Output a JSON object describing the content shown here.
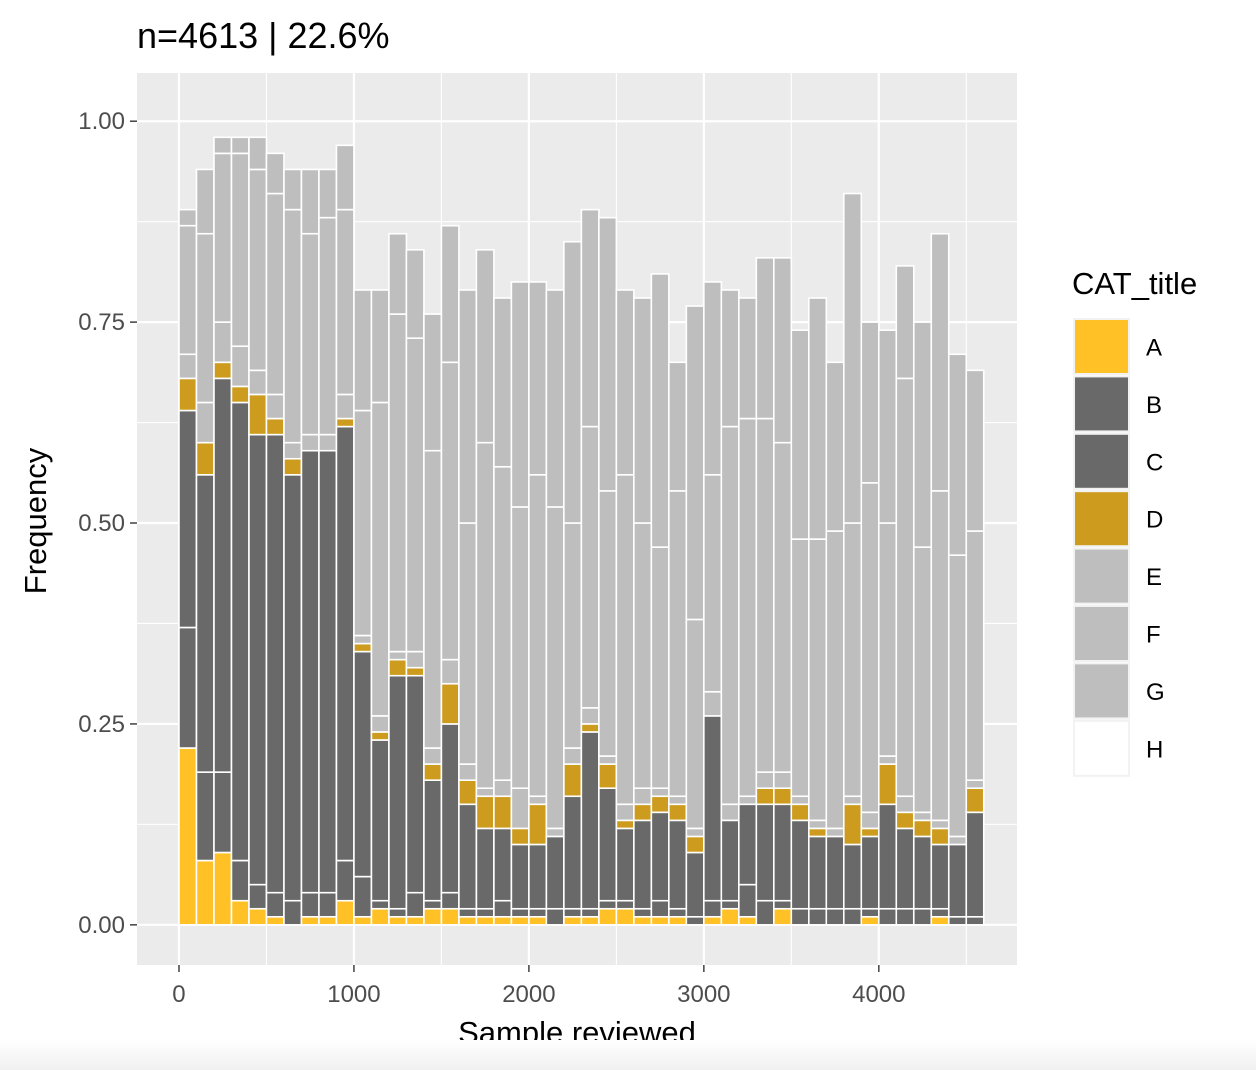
{
  "chart_data": {
    "type": "bar",
    "stacked": true,
    "title": "n=4613 | 22.6%",
    "xlabel": "Sample reviewed",
    "ylabel": "Frequency",
    "xlim": [
      -240,
      4790
    ],
    "ylim": [
      -0.05,
      1.06
    ],
    "xticks": [
      0,
      1000,
      2000,
      3000,
      4000
    ],
    "xtick_labels": [
      "0",
      "1000",
      "2000",
      "3000",
      "4000"
    ],
    "yticks": [
      0,
      0.25,
      0.5,
      0.75,
      1.0
    ],
    "ytick_labels": [
      "0.00",
      "0.25",
      "0.50",
      "0.75",
      "1.00"
    ],
    "bin_width": 100,
    "x": [
      50,
      150,
      250,
      350,
      450,
      550,
      650,
      750,
      850,
      950,
      1050,
      1150,
      1250,
      1350,
      1450,
      1550,
      1650,
      1750,
      1850,
      1950,
      2050,
      2150,
      2250,
      2350,
      2450,
      2550,
      2650,
      2750,
      2850,
      2950,
      3050,
      3150,
      3250,
      3350,
      3450,
      3550,
      3650,
      3750,
      3850,
      3950,
      4050,
      4150,
      4250,
      4350,
      4450,
      4550
    ],
    "legend_title": "CAT_title",
    "legend_position": "right",
    "series": [
      {
        "name": "A",
        "color": "#FFC125",
        "values": [
          0.22,
          0.08,
          0.09,
          0.03,
          0.02,
          0.01,
          0,
          0.01,
          0.01,
          0.03,
          0.01,
          0.02,
          0.01,
          0.01,
          0.02,
          0.02,
          0.01,
          0.01,
          0.01,
          0.01,
          0.01,
          0,
          0.01,
          0.01,
          0.02,
          0.02,
          0.01,
          0.01,
          0.01,
          0,
          0.01,
          0.02,
          0.01,
          0,
          0.02,
          0,
          0,
          0,
          0,
          0.01,
          0,
          0,
          0,
          0.01,
          0,
          0
        ]
      },
      {
        "name": "B",
        "color": "#696969",
        "values": [
          0.15,
          0.11,
          0.1,
          0.05,
          0.03,
          0.03,
          0.03,
          0.03,
          0.03,
          0.05,
          0.05,
          0.01,
          0.01,
          0.03,
          0.01,
          0.02,
          0.01,
          0.01,
          0.02,
          0.01,
          0.01,
          0.02,
          0.01,
          0.01,
          0.01,
          0.01,
          0.01,
          0.02,
          0.01,
          0.01,
          0.02,
          0.01,
          0.04,
          0.03,
          0.01,
          0.02,
          0.02,
          0.02,
          0.02,
          0.01,
          0.02,
          0.02,
          0.02,
          0.01,
          0.01,
          0.01
        ]
      },
      {
        "name": "C",
        "color": "#696969",
        "values": [
          0.27,
          0.37,
          0.49,
          0.57,
          0.56,
          0.57,
          0.53,
          0.55,
          0.55,
          0.54,
          0.28,
          0.2,
          0.29,
          0.27,
          0.15,
          0.21,
          0.13,
          0.1,
          0.09,
          0.08,
          0.08,
          0.09,
          0.14,
          0.22,
          0.14,
          0.09,
          0.11,
          0.11,
          0.11,
          0.08,
          0.23,
          0.1,
          0.1,
          0.12,
          0.12,
          0.11,
          0.09,
          0.09,
          0.08,
          0.09,
          0.13,
          0.1,
          0.09,
          0.08,
          0.09,
          0.13
        ]
      },
      {
        "name": "D",
        "color": "#CD9B1D",
        "values": [
          0.04,
          0.04,
          0.02,
          0.02,
          0.05,
          0.02,
          0.02,
          0,
          0,
          0.01,
          0.01,
          0.01,
          0.02,
          0.01,
          0.02,
          0.05,
          0.03,
          0.04,
          0.04,
          0.02,
          0.05,
          0,
          0.04,
          0.01,
          0.03,
          0.01,
          0.02,
          0.02,
          0.02,
          0.02,
          0,
          0,
          0,
          0.02,
          0.02,
          0.02,
          0.01,
          0,
          0.05,
          0.01,
          0.05,
          0.02,
          0.02,
          0.02,
          0,
          0.03
        ]
      },
      {
        "name": "E",
        "color": "#BEBEBE",
        "values": [
          0.03,
          0.05,
          0.05,
          0.05,
          0.03,
          0.03,
          0.02,
          0.02,
          0.02,
          0.03,
          0.01,
          0.02,
          0.01,
          0.02,
          0.02,
          0.03,
          0.02,
          0.01,
          0.02,
          0.05,
          0.01,
          0.01,
          0.02,
          0.02,
          0.01,
          0.02,
          0.02,
          0.01,
          0.01,
          0.01,
          0.03,
          0.02,
          0.01,
          0.02,
          0.02,
          0.01,
          0.01,
          0.01,
          0.01,
          0.02,
          0.01,
          0.02,
          0.01,
          0.01,
          0.01,
          0.01
        ]
      },
      {
        "name": "F",
        "color": "#BEBEBE",
        "values": [
          0.16,
          0.21,
          0.21,
          0.24,
          0.25,
          0.25,
          0.29,
          0.25,
          0.27,
          0.23,
          0.28,
          0.39,
          0.42,
          0.39,
          0.37,
          0.37,
          0.3,
          0.43,
          0.39,
          0.35,
          0.4,
          0.4,
          0.28,
          0.35,
          0.33,
          0.41,
          0.33,
          0.3,
          0.38,
          0.26,
          0.27,
          0.47,
          0.47,
          0.44,
          0.41,
          0.32,
          0.35,
          0.37,
          0.34,
          0.41,
          0.29,
          0.52,
          0.33,
          0.41,
          0.35,
          0.31
        ]
      },
      {
        "name": "G",
        "color": "#BEBEBE",
        "values": [
          0.02,
          0.08,
          0.02,
          0.02,
          0.04,
          0.05,
          0.05,
          0.08,
          0.06,
          0.08,
          0.15,
          0.14,
          0.1,
          0.11,
          0.17,
          0.17,
          0.29,
          0.24,
          0.21,
          0.28,
          0.24,
          0.27,
          0.35,
          0.27,
          0.34,
          0.23,
          0.28,
          0.34,
          0.16,
          0.39,
          0.24,
          0.17,
          0.15,
          0.2,
          0.23,
          0.26,
          0.3,
          0.21,
          0.41,
          0.2,
          0.24,
          0.14,
          0.28,
          0.32,
          0.25,
          0.2
        ]
      },
      {
        "name": "H",
        "color": "#FFFFFF",
        "values": [
          0,
          0,
          0,
          0,
          0,
          0,
          0,
          0,
          0,
          0,
          0,
          0,
          0,
          0,
          0,
          0,
          0,
          0,
          0,
          0,
          0,
          0,
          0,
          0,
          0,
          0,
          0,
          0,
          0,
          0,
          0,
          0,
          0,
          0,
          0,
          0,
          0,
          0,
          0,
          0,
          0,
          0,
          0,
          0,
          0,
          0
        ]
      }
    ],
    "colors": {
      "panel_background": "#EBEBEB",
      "grid_major": "#FFFFFF",
      "grid_minor": "#F5F5F5",
      "bar_outline": "#FFFFFF",
      "axis_text": "#4D4D4D",
      "title_text": "#000000"
    }
  }
}
